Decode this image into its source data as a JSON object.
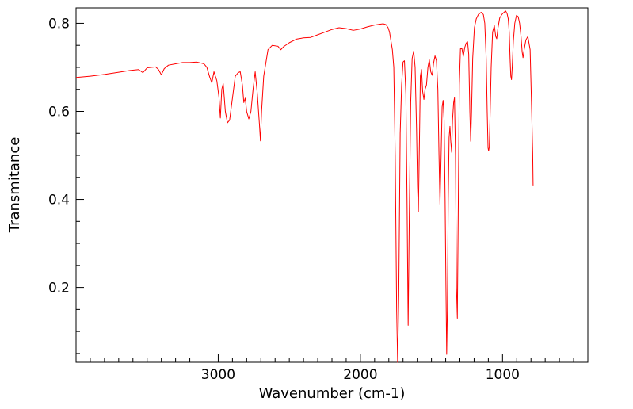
{
  "chart_data": {
    "type": "line",
    "title": "",
    "xlabel": "Wavenumber (cm-1)",
    "ylabel": "Transmitance",
    "x_reversed": true,
    "xlim": [
      4000,
      400
    ],
    "ylim": [
      0.03,
      0.835
    ],
    "x_ticks": [
      3000,
      2000,
      1000
    ],
    "x_tick_labels": [
      "3000",
      "2000",
      "1000"
    ],
    "x_minor_step": 100,
    "y_ticks": [
      0.2,
      0.4,
      0.6,
      0.8
    ],
    "y_tick_labels": [
      "0.2",
      "0.4",
      "0.6",
      "0.8"
    ],
    "y_minor_step": 0.05,
    "grid": false,
    "legend": "none",
    "series": [
      {
        "color": "#ff0000",
        "points": [
          [
            4000,
            0.677
          ],
          [
            3900,
            0.68
          ],
          [
            3800,
            0.684
          ],
          [
            3700,
            0.689
          ],
          [
            3620,
            0.693
          ],
          [
            3560,
            0.695
          ],
          [
            3530,
            0.688
          ],
          [
            3500,
            0.699
          ],
          [
            3440,
            0.701
          ],
          [
            3420,
            0.695
          ],
          [
            3400,
            0.683
          ],
          [
            3380,
            0.697
          ],
          [
            3350,
            0.705
          ],
          [
            3300,
            0.708
          ],
          [
            3250,
            0.711
          ],
          [
            3200,
            0.711
          ],
          [
            3150,
            0.712
          ],
          [
            3100,
            0.708
          ],
          [
            3080,
            0.7
          ],
          [
            3060,
            0.678
          ],
          [
            3045,
            0.665
          ],
          [
            3030,
            0.69
          ],
          [
            3010,
            0.67
          ],
          [
            2995,
            0.633
          ],
          [
            2985,
            0.585
          ],
          [
            2975,
            0.65
          ],
          [
            2965,
            0.663
          ],
          [
            2950,
            0.6
          ],
          [
            2935,
            0.574
          ],
          [
            2920,
            0.58
          ],
          [
            2900,
            0.63
          ],
          [
            2880,
            0.68
          ],
          [
            2860,
            0.688
          ],
          [
            2845,
            0.69
          ],
          [
            2830,
            0.66
          ],
          [
            2820,
            0.62
          ],
          [
            2810,
            0.63
          ],
          [
            2800,
            0.6
          ],
          [
            2785,
            0.583
          ],
          [
            2770,
            0.6
          ],
          [
            2755,
            0.65
          ],
          [
            2740,
            0.69
          ],
          [
            2725,
            0.64
          ],
          [
            2710,
            0.57
          ],
          [
            2703,
            0.533
          ],
          [
            2695,
            0.6
          ],
          [
            2680,
            0.68
          ],
          [
            2650,
            0.74
          ],
          [
            2620,
            0.75
          ],
          [
            2580,
            0.748
          ],
          [
            2560,
            0.74
          ],
          [
            2540,
            0.747
          ],
          [
            2500,
            0.756
          ],
          [
            2450,
            0.764
          ],
          [
            2400,
            0.767
          ],
          [
            2350,
            0.768
          ],
          [
            2300,
            0.774
          ],
          [
            2250,
            0.78
          ],
          [
            2200,
            0.786
          ],
          [
            2150,
            0.79
          ],
          [
            2100,
            0.788
          ],
          [
            2050,
            0.784
          ],
          [
            2000,
            0.787
          ],
          [
            1950,
            0.792
          ],
          [
            1900,
            0.796
          ],
          [
            1860,
            0.798
          ],
          [
            1840,
            0.799
          ],
          [
            1820,
            0.797
          ],
          [
            1805,
            0.79
          ],
          [
            1795,
            0.78
          ],
          [
            1785,
            0.76
          ],
          [
            1775,
            0.74
          ],
          [
            1765,
            0.7
          ],
          [
            1755,
            0.5
          ],
          [
            1745,
            0.15
          ],
          [
            1738,
            0.03
          ],
          [
            1730,
            0.18
          ],
          [
            1720,
            0.55
          ],
          [
            1710,
            0.66
          ],
          [
            1700,
            0.712
          ],
          [
            1690,
            0.715
          ],
          [
            1680,
            0.64
          ],
          [
            1672,
            0.4
          ],
          [
            1664,
            0.114
          ],
          [
            1656,
            0.36
          ],
          [
            1646,
            0.62
          ],
          [
            1636,
            0.72
          ],
          [
            1625,
            0.737
          ],
          [
            1615,
            0.7
          ],
          [
            1605,
            0.56
          ],
          [
            1598,
            0.43
          ],
          [
            1592,
            0.372
          ],
          [
            1586,
            0.5
          ],
          [
            1578,
            0.68
          ],
          [
            1570,
            0.695
          ],
          [
            1562,
            0.645
          ],
          [
            1553,
            0.627
          ],
          [
            1545,
            0.65
          ],
          [
            1535,
            0.66
          ],
          [
            1525,
            0.7
          ],
          [
            1515,
            0.717
          ],
          [
            1505,
            0.69
          ],
          [
            1495,
            0.682
          ],
          [
            1485,
            0.71
          ],
          [
            1475,
            0.726
          ],
          [
            1465,
            0.715
          ],
          [
            1455,
            0.65
          ],
          [
            1447,
            0.5
          ],
          [
            1440,
            0.389
          ],
          [
            1432,
            0.5
          ],
          [
            1425,
            0.61
          ],
          [
            1418,
            0.625
          ],
          [
            1411,
            0.58
          ],
          [
            1404,
            0.4
          ],
          [
            1398,
            0.2
          ],
          [
            1393,
            0.048
          ],
          [
            1388,
            0.15
          ],
          [
            1382,
            0.4
          ],
          [
            1376,
            0.54
          ],
          [
            1370,
            0.566
          ],
          [
            1364,
            0.53
          ],
          [
            1358,
            0.507
          ],
          [
            1352,
            0.58
          ],
          [
            1344,
            0.62
          ],
          [
            1338,
            0.631
          ],
          [
            1331,
            0.5
          ],
          [
            1324,
            0.2
          ],
          [
            1318,
            0.13
          ],
          [
            1311,
            0.4
          ],
          [
            1304,
            0.66
          ],
          [
            1296,
            0.742
          ],
          [
            1286,
            0.743
          ],
          [
            1276,
            0.725
          ],
          [
            1266,
            0.745
          ],
          [
            1256,
            0.755
          ],
          [
            1246,
            0.758
          ],
          [
            1238,
            0.73
          ],
          [
            1230,
            0.6
          ],
          [
            1224,
            0.532
          ],
          [
            1218,
            0.6
          ],
          [
            1210,
            0.72
          ],
          [
            1198,
            0.79
          ],
          [
            1185,
            0.81
          ],
          [
            1170,
            0.82
          ],
          [
            1150,
            0.825
          ],
          [
            1135,
            0.82
          ],
          [
            1125,
            0.8
          ],
          [
            1115,
            0.72
          ],
          [
            1108,
            0.6
          ],
          [
            1102,
            0.517
          ],
          [
            1098,
            0.51
          ],
          [
            1093,
            0.52
          ],
          [
            1087,
            0.6
          ],
          [
            1080,
            0.7
          ],
          [
            1070,
            0.78
          ],
          [
            1058,
            0.795
          ],
          [
            1048,
            0.77
          ],
          [
            1041,
            0.765
          ],
          [
            1032,
            0.79
          ],
          [
            1020,
            0.812
          ],
          [
            1005,
            0.82
          ],
          [
            990,
            0.825
          ],
          [
            978,
            0.828
          ],
          [
            968,
            0.822
          ],
          [
            960,
            0.81
          ],
          [
            953,
            0.78
          ],
          [
            947,
            0.72
          ],
          [
            942,
            0.68
          ],
          [
            937,
            0.672
          ],
          [
            932,
            0.7
          ],
          [
            924,
            0.76
          ],
          [
            914,
            0.8
          ],
          [
            902,
            0.818
          ],
          [
            890,
            0.815
          ],
          [
            880,
            0.8
          ],
          [
            870,
            0.77
          ],
          [
            862,
            0.735
          ],
          [
            856,
            0.722
          ],
          [
            848,
            0.74
          ],
          [
            836,
            0.762
          ],
          [
            822,
            0.77
          ],
          [
            806,
            0.74
          ],
          [
            795,
            0.6
          ],
          [
            788,
            0.505
          ],
          [
            785,
            0.43
          ]
        ]
      }
    ]
  }
}
